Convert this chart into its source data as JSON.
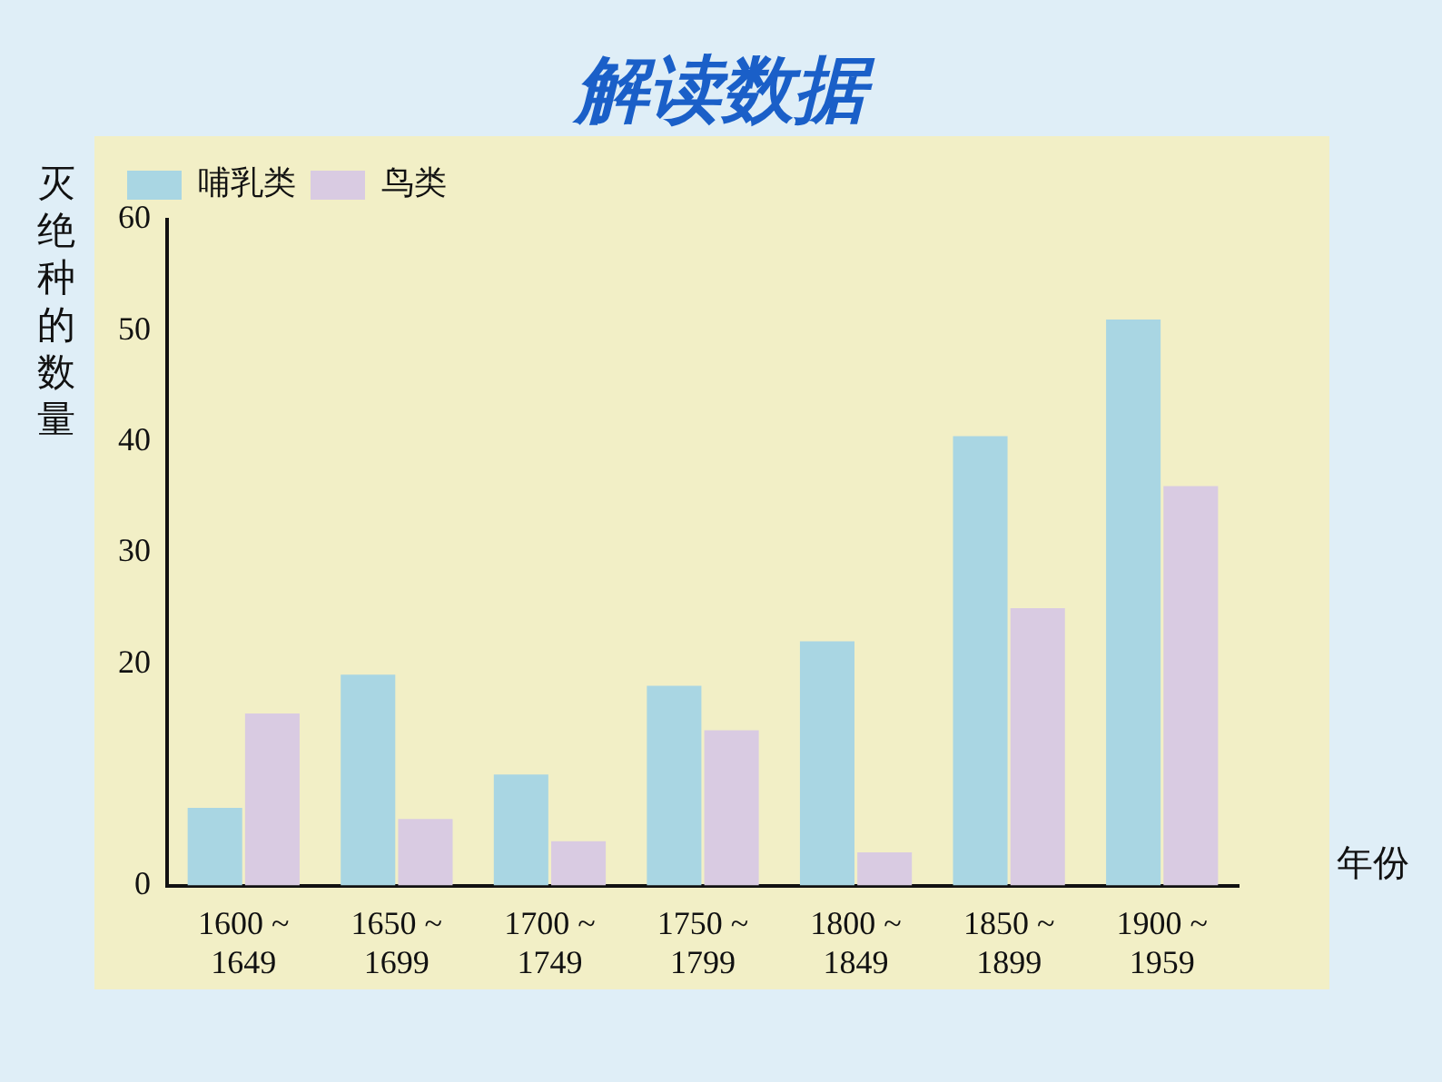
{
  "chart_data": {
    "type": "bar",
    "title": "解读数据",
    "ylabel": "灭绝种的数量",
    "xlabel": "年份",
    "categories": [
      "1600 ~ 1649",
      "1650 ~ 1699",
      "1700 ~ 1749",
      "1750 ~ 1799",
      "1800 ~ 1849",
      "1850 ~ 1899",
      "1900 ~ 1959"
    ],
    "series": [
      {
        "name": "哺乳类",
        "color": "#a9d6e3",
        "values": [
          7,
          19,
          10,
          18,
          22,
          40.5,
          51
        ]
      },
      {
        "name": "鸟类",
        "color": "#d9cbe2",
        "values": [
          15.5,
          6,
          4,
          14,
          3,
          25,
          36
        ]
      }
    ],
    "ylim": [
      0,
      60
    ],
    "yticks": [
      0,
      20,
      30,
      40,
      50,
      60
    ],
    "grid": false,
    "legend": "top left"
  }
}
